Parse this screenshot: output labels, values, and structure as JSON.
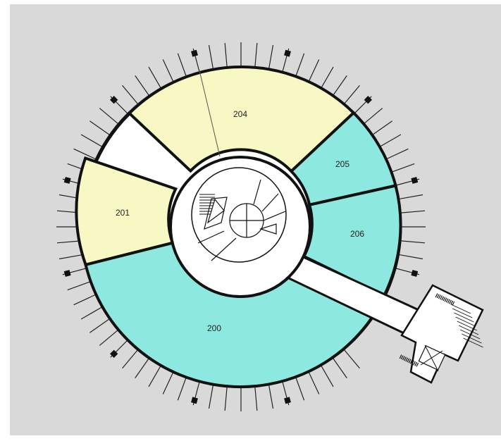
{
  "map": {
    "background_color": "#d9d9d9",
    "rooms": [
      {
        "id": "204",
        "label": "204",
        "fill": "#f8f8c4"
      },
      {
        "id": "205",
        "label": "205",
        "fill": "#8de8df"
      },
      {
        "id": "206",
        "label": "206",
        "fill": "#8de8df"
      },
      {
        "id": "201",
        "label": "201",
        "fill": "#f8f8c4"
      },
      {
        "id": "200",
        "label": "200",
        "fill": "#8de8df"
      }
    ],
    "corridor_color": "#ffffff",
    "wall_color": "#111111"
  }
}
